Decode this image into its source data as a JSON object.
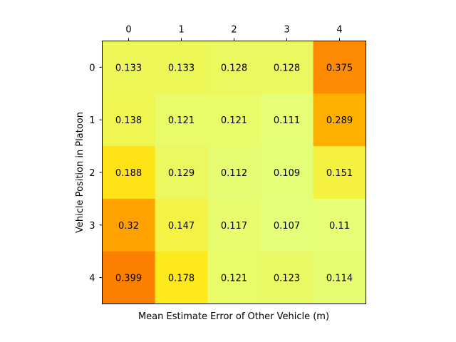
{
  "chart_data": {
    "type": "heatmap",
    "title": "",
    "xlabel": "Mean Estimate Error of Other Vehicle (m)",
    "ylabel": "Vehicle Position in Platoon",
    "x_tick_position": "top",
    "x_categories": [
      "0",
      "1",
      "2",
      "3",
      "4"
    ],
    "y_categories": [
      "0",
      "1",
      "2",
      "3",
      "4"
    ],
    "values": [
      [
        0.133,
        0.133,
        0.128,
        0.128,
        0.375
      ],
      [
        0.138,
        0.121,
        0.121,
        0.111,
        0.289
      ],
      [
        0.188,
        0.129,
        0.112,
        0.109,
        0.151
      ],
      [
        0.32,
        0.147,
        0.117,
        0.107,
        0.11
      ],
      [
        0.399,
        0.178,
        0.121,
        0.123,
        0.114
      ]
    ],
    "cell_labels": [
      [
        "0.133",
        "0.133",
        "0.128",
        "0.128",
        "0.375"
      ],
      [
        "0.138",
        "0.121",
        "0.121",
        "0.111",
        "0.289"
      ],
      [
        "0.188",
        "0.129",
        "0.112",
        "0.109",
        "0.151"
      ],
      [
        "0.32",
        "0.147",
        "0.117",
        "0.107",
        "0.11"
      ],
      [
        "0.399",
        "0.178",
        "0.121",
        "0.123",
        "0.114"
      ]
    ],
    "colormap": "Wistia",
    "color_stops": [
      "#e4ff7a",
      "#ffe81a",
      "#ffbd00",
      "#ffa000",
      "#fc7f00"
    ],
    "grid": false,
    "legend": "none"
  }
}
